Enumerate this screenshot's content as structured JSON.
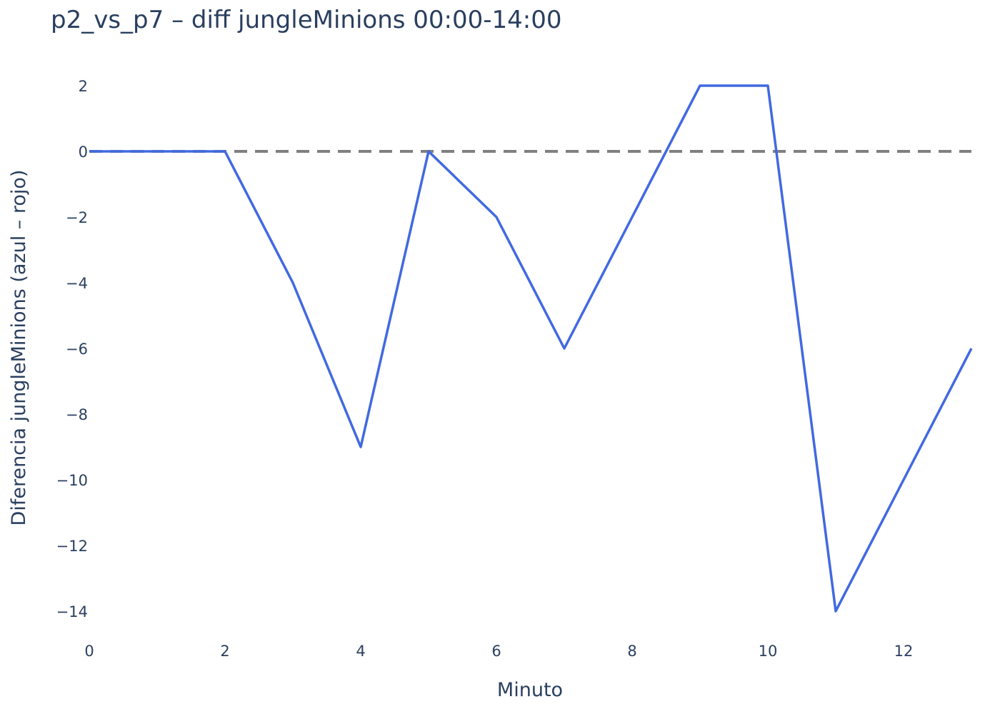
{
  "chart_data": {
    "type": "line",
    "title": "p2_vs_p7 – diff jungleMinions 00:00-14:00",
    "xlabel": "Minuto",
    "ylabel": "Diferencia jungleMinions (azul – rojo)",
    "xlim": [
      0,
      13
    ],
    "ylim": [
      -15,
      2.5
    ],
    "x_ticks": [
      0,
      2,
      4,
      6,
      8,
      10,
      12
    ],
    "x_tick_labels": [
      "0",
      "2",
      "4",
      "6",
      "8",
      "10",
      "12"
    ],
    "y_ticks": [
      2,
      0,
      -2,
      -4,
      -6,
      -8,
      -10,
      -12,
      -14
    ],
    "y_tick_labels": [
      "2",
      "0",
      "−2",
      "−4",
      "−6",
      "−8",
      "−10",
      "−12",
      "−14"
    ],
    "grid": false,
    "reference_line": {
      "y": 0,
      "style": "dashed",
      "color": "#808080"
    },
    "series": [
      {
        "color": "#4169e1",
        "x": [
          0,
          1,
          2,
          3,
          4,
          5,
          6,
          7,
          8,
          9,
          10,
          11,
          12,
          13
        ],
        "y": [
          0,
          0,
          0,
          -4,
          -9,
          0,
          -2,
          -6,
          -2,
          2,
          2,
          -14,
          -10,
          -6
        ]
      }
    ]
  }
}
